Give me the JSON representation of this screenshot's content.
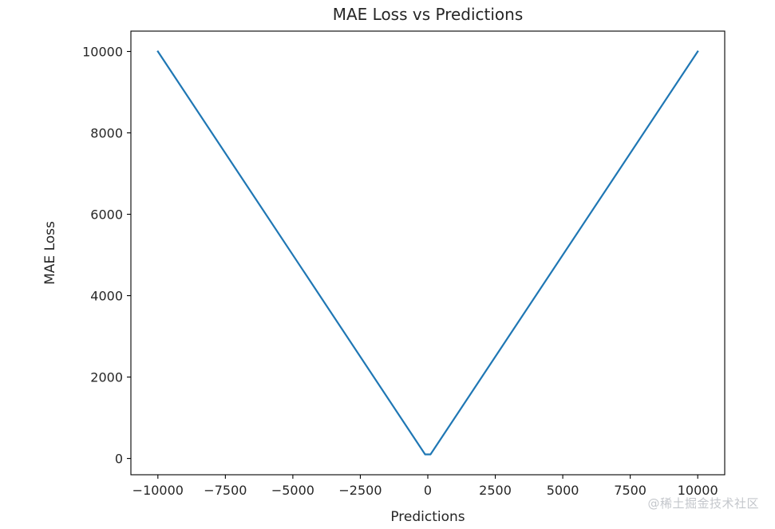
{
  "chart_data": {
    "type": "line",
    "title": "MAE Loss vs Predictions",
    "xlabel": "Predictions",
    "ylabel": "MAE Loss",
    "xlim": [
      -11000,
      11000
    ],
    "ylim": [
      -400,
      10500
    ],
    "xticks": [
      -10000,
      -7500,
      -5000,
      -2500,
      0,
      2500,
      5000,
      7500,
      10000
    ],
    "xtick_labels": [
      "−10000",
      "−7500",
      "−5000",
      "−2500",
      "0",
      "2500",
      "5000",
      "7500",
      "10000"
    ],
    "yticks": [
      0,
      2000,
      4000,
      6000,
      8000,
      10000
    ],
    "ytick_labels": [
      "0",
      "2000",
      "4000",
      "6000",
      "8000",
      "10000"
    ],
    "grid": false,
    "series": [
      {
        "color": "#1f77b4",
        "x": [
          -10000,
          -100,
          100,
          10000
        ],
        "y": [
          10000,
          100,
          100,
          10000
        ]
      }
    ]
  },
  "watermark": "@稀土掘金技术社区"
}
